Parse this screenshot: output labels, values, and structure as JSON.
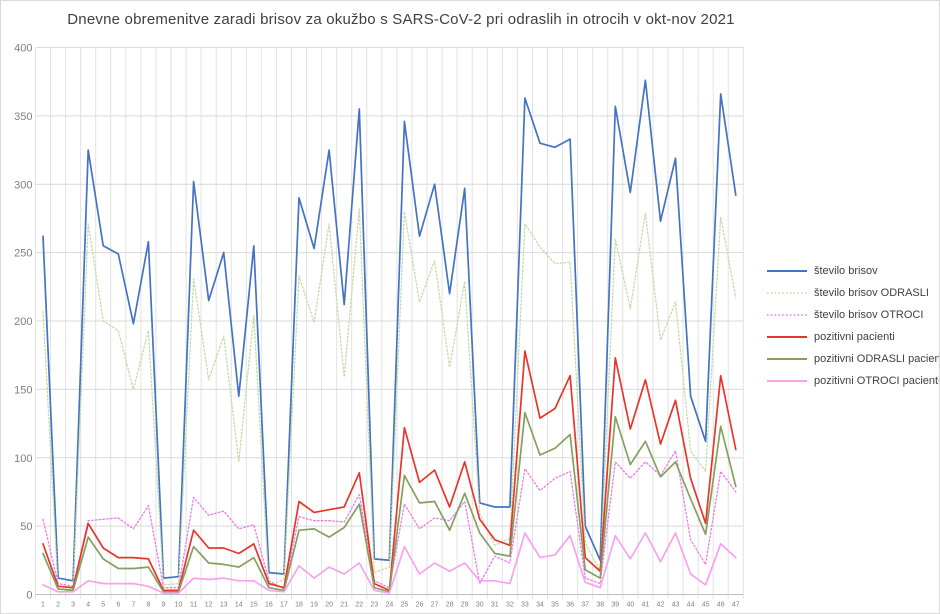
{
  "chart_data": {
    "type": "line",
    "title": "Dnevne obremenitve zaradi brisov za okužbo s SARS-CoV-2 pri odraslih in otrocih v okt-nov 2021",
    "x": [
      1,
      2,
      3,
      4,
      5,
      6,
      7,
      8,
      9,
      10,
      11,
      12,
      13,
      14,
      15,
      16,
      17,
      18,
      19,
      20,
      21,
      22,
      23,
      24,
      25,
      26,
      27,
      28,
      29,
      30,
      31,
      32,
      33,
      34,
      35,
      36,
      37,
      38,
      39,
      40,
      41,
      42,
      43,
      44,
      45,
      46,
      47
    ],
    "ylim": [
      0,
      400
    ],
    "y_ticks": [
      0,
      50,
      100,
      150,
      200,
      250,
      300,
      350,
      400
    ],
    "grid": true,
    "legend_position": "right",
    "series": [
      {
        "name": "število brisov",
        "color": "#4472C4",
        "style": "solid",
        "values": [
          262,
          12,
          10,
          325,
          255,
          249,
          198,
          258,
          12,
          13,
          302,
          215,
          250,
          145,
          255,
          16,
          15,
          290,
          253,
          325,
          212,
          355,
          26,
          25,
          346,
          262,
          300,
          220,
          297,
          67,
          64,
          64,
          363,
          330,
          327,
          333,
          50,
          25,
          357,
          294,
          376,
          273,
          319,
          145,
          112,
          366,
          292
        ]
      },
      {
        "name": "število brisov ODRASLI",
        "color": "#C3DBA4",
        "style": "dotted",
        "values": [
          207,
          4,
          4,
          271,
          200,
          193,
          150,
          193,
          7,
          8,
          231,
          157,
          189,
          97,
          204,
          6,
          11,
          233,
          199,
          271,
          159,
          282,
          16,
          20,
          280,
          214,
          244,
          166,
          229,
          59,
          36,
          41,
          271,
          254,
          242,
          243,
          38,
          17,
          260,
          209,
          279,
          186,
          214,
          105,
          90,
          276,
          217
        ]
      },
      {
        "name": "število brisov OTROCI",
        "color": "#EE7AEA",
        "style": "dotted",
        "values": [
          55,
          8,
          6,
          54,
          55,
          56,
          48,
          65,
          5,
          5,
          71,
          58,
          61,
          48,
          51,
          10,
          4,
          57,
          54,
          54,
          53,
          73,
          10,
          5,
          66,
          48,
          56,
          54,
          68,
          8,
          28,
          23,
          92,
          76,
          85,
          90,
          12,
          8,
          97,
          85,
          97,
          87,
          105,
          40,
          22,
          90,
          75
        ]
      },
      {
        "name": "pozitivni pacienti",
        "color": "#E8352B",
        "style": "solid",
        "values": [
          37,
          6,
          5,
          52,
          34,
          27,
          27,
          26,
          3,
          3,
          47,
          34,
          34,
          30,
          37,
          8,
          5,
          68,
          60,
          62,
          64,
          89,
          8,
          3,
          122,
          82,
          91,
          64,
          97,
          55,
          40,
          36,
          178,
          129,
          136,
          160,
          27,
          17,
          173,
          121,
          157,
          110,
          142,
          85,
          52,
          160,
          106
        ]
      },
      {
        "name": "pozitivni ODRASLI pacienti",
        "color": "#85A05E",
        "style": "solid",
        "values": [
          30,
          4,
          3,
          42,
          26,
          19,
          19,
          20,
          2,
          2,
          35,
          23,
          22,
          20,
          27,
          5,
          3,
          47,
          48,
          42,
          49,
          66,
          5,
          2,
          87,
          67,
          68,
          47,
          74,
          45,
          30,
          28,
          133,
          102,
          107,
          117,
          18,
          12,
          130,
          95,
          112,
          86,
          97,
          70,
          44,
          123,
          79
        ]
      },
      {
        "name": "pozitivni OTROCI pacienti",
        "color": "#F7A1F0",
        "style": "solid",
        "values": [
          7,
          2,
          2,
          10,
          8,
          8,
          8,
          6,
          1,
          1,
          12,
          11,
          12,
          10,
          10,
          3,
          2,
          21,
          12,
          20,
          15,
          23,
          3,
          1,
          35,
          15,
          23,
          17,
          23,
          10,
          10,
          8,
          45,
          27,
          29,
          43,
          9,
          5,
          43,
          26,
          45,
          24,
          45,
          15,
          7,
          37,
          27
        ]
      }
    ]
  }
}
